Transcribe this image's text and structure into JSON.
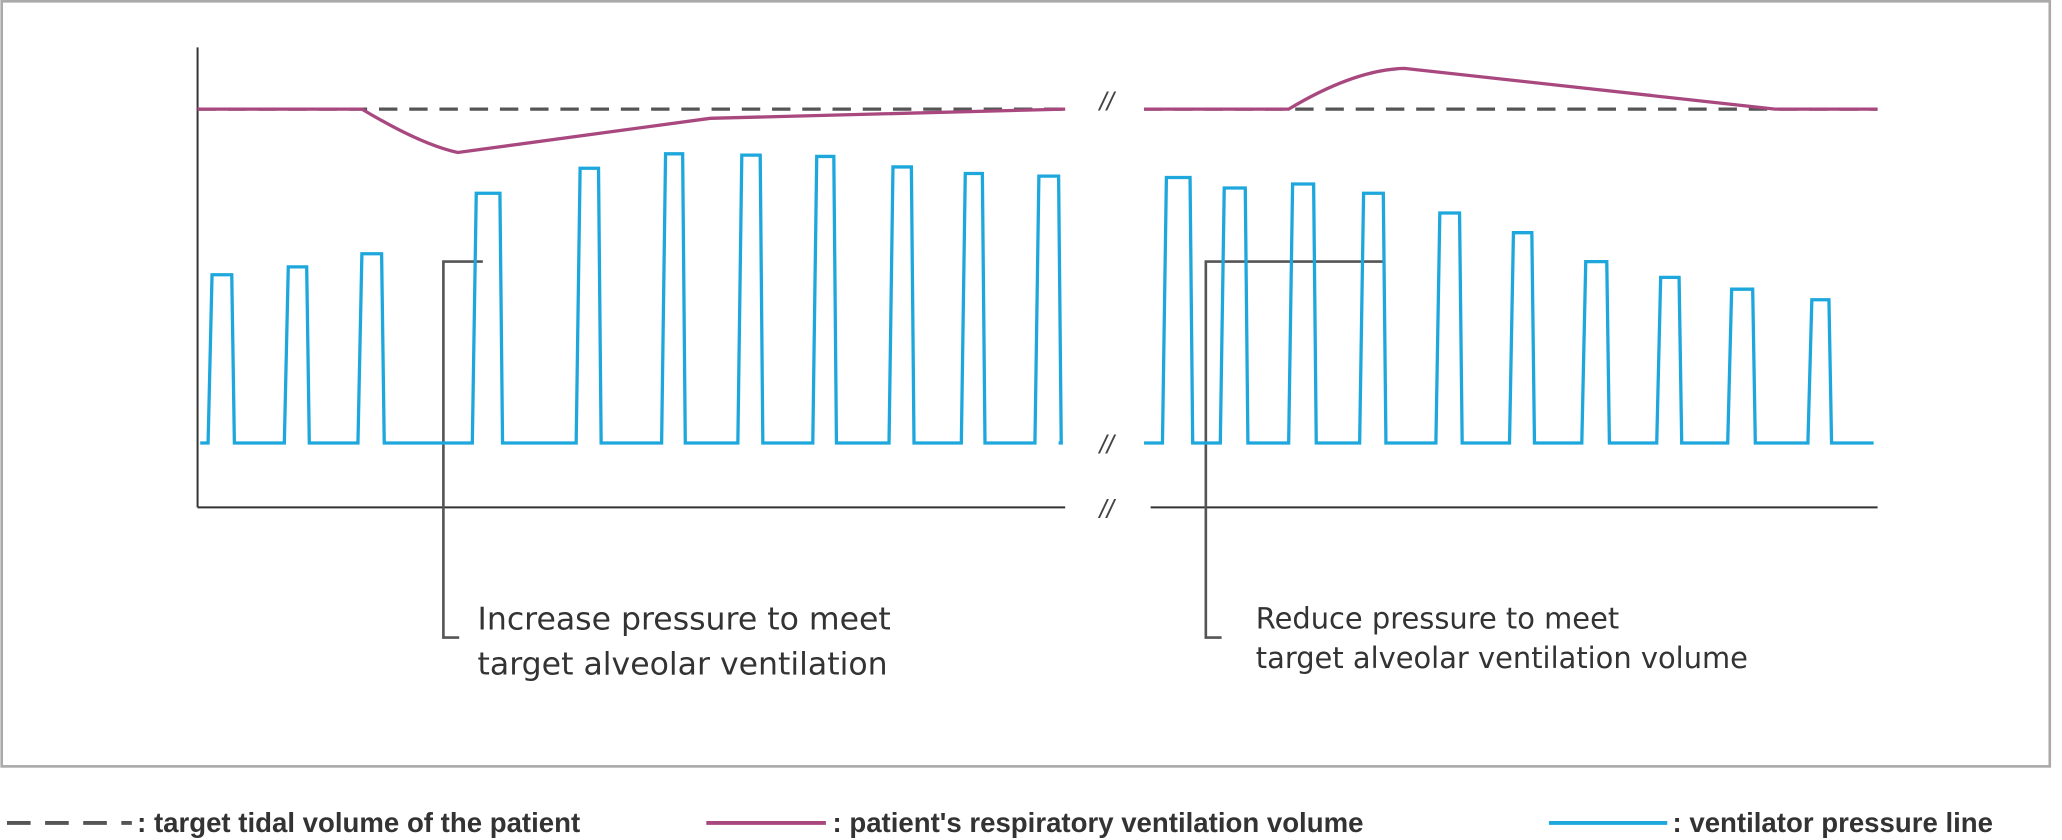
{
  "axis_breaks": [
    "//",
    "//",
    "//"
  ],
  "annotations": [
    {
      "lines": [
        "Increase pressure to meet",
        "target alveolar ventilation"
      ]
    },
    {
      "lines": [
        "Reduce pressure to meet",
        "target alveolar ventilation volume"
      ]
    }
  ],
  "legend": [
    {
      "label": ": target tidal volume of the patient"
    },
    {
      "label": ": patient's respiratory ventilation volume"
    },
    {
      "label": ": ventilator pressure line"
    }
  ]
}
